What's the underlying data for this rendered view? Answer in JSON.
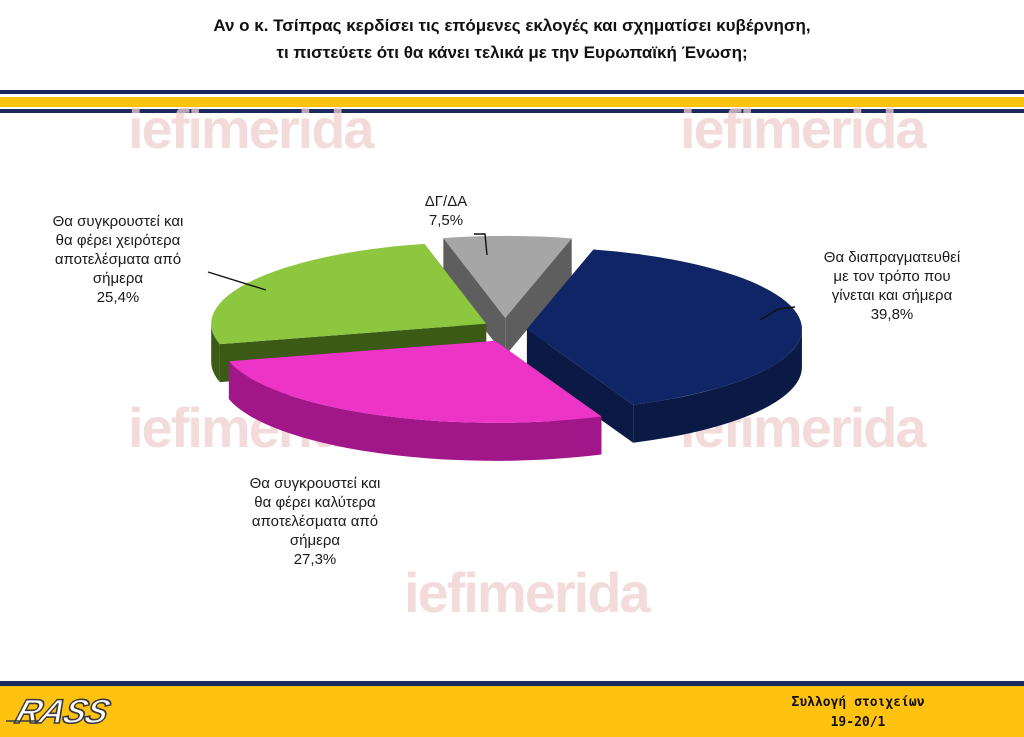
{
  "title": {
    "line1": "Αν ο κ. Τσίπρας κερδίσει τις επόμενες εκλογές και σχηματίσει  κυβέρνηση,",
    "line2": "τι πιστεύετε ότι θα κάνει τελικά με την Ευρωπαϊκή Ένωση;"
  },
  "watermark": {
    "text": "iefimerida"
  },
  "colors": {
    "navy": "#1a2a5e",
    "gold": "#ffc20e"
  },
  "chart_data": {
    "type": "pie",
    "title": "Αν ο κ. Τσίπρας κερδίσει τις επόμενες εκλογές και σχηματίσει κυβέρνηση, τι πιστεύετε ότι θα κάνει τελικά με την Ευρωπαϊκή Ένωση;",
    "unit": "%",
    "slices": [
      {
        "label": "Θα διαπραγματευθεί με τον τρόπο που γίνεται και σήμερα",
        "lines": [
          "Θα διαπραγματευθεί",
          "με τον τρόπο που",
          "γίνεται και σήμερα"
        ],
        "value": 39.8,
        "value_text": "39,8%",
        "color": "#102565",
        "side": "#0b1a45"
      },
      {
        "label": "Θα συγκρουστεί και θα φέρει καλύτερα αποτελέσματα από σήμερα",
        "lines": [
          "Θα συγκρουστεί και",
          "θα φέρει καλύτερα",
          "αποτελέσματα από",
          "σήμερα"
        ],
        "value": 27.3,
        "value_text": "27,3%",
        "color": "#ec35c6",
        "side": "#a1178a"
      },
      {
        "label": "Θα συγκρουστεί και θα φέρει χειρότερα αποτελέσματα από σήμερα",
        "lines": [
          "Θα συγκρουστεί και",
          "θα φέρει χειρότερα",
          "αποτελέσματα από",
          "σήμερα"
        ],
        "value": 25.4,
        "value_text": "25,4%",
        "color": "#8dc63f",
        "side": "#3a5a16"
      },
      {
        "label": "ΔΓ/ΔΑ",
        "lines": [
          "ΔΓ/ΔΑ"
        ],
        "value": 7.5,
        "value_text": "7,5%",
        "color": "#a6a6a6",
        "side": "#5e5e5e"
      }
    ],
    "legend": "none",
    "data_labels": "outside with leader lines",
    "style": "3D exploded pie"
  },
  "footer": {
    "logo_text": "RASS",
    "collection_label": "Συλλογή στοιχείων",
    "collection_dates": "19-20/1"
  }
}
